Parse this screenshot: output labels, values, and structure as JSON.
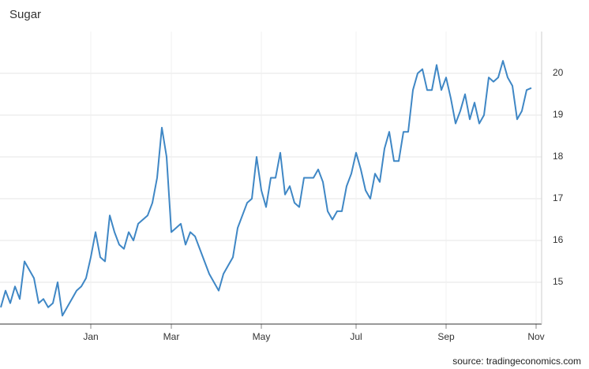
{
  "chart_data": {
    "type": "line",
    "title": "Sugar",
    "source": "source: tradingeconomics.com",
    "categories": [
      null,
      null,
      null,
      null,
      null,
      null,
      null,
      null,
      null,
      null,
      null,
      null,
      null,
      null,
      null,
      null,
      null,
      null,
      null,
      "Jan",
      null,
      null,
      null,
      null,
      null,
      null,
      null,
      null,
      null,
      null,
      null,
      null,
      null,
      null,
      null,
      null,
      "Mar",
      null,
      null,
      null,
      null,
      null,
      null,
      null,
      null,
      null,
      null,
      null,
      null,
      null,
      null,
      null,
      null,
      null,
      null,
      "May",
      null,
      null,
      null,
      null,
      null,
      null,
      null,
      null,
      null,
      null,
      null,
      null,
      null,
      null,
      null,
      null,
      null,
      null,
      null,
      "Jul",
      null,
      null,
      null,
      null,
      null,
      null,
      null,
      null,
      null,
      null,
      null,
      null,
      null,
      null,
      null,
      null,
      null,
      null,
      "Sep",
      null,
      null,
      null,
      null,
      null,
      null,
      null,
      null,
      null,
      null,
      null,
      null,
      null,
      null,
      null,
      null,
      null,
      null,
      "Nov"
    ],
    "series": [
      {
        "name": "Sugar",
        "color": "#3f87c5",
        "values": [
          14.4,
          14.8,
          14.5,
          14.9,
          14.6,
          15.5,
          15.3,
          15.1,
          14.5,
          14.6,
          14.4,
          14.5,
          15.0,
          14.2,
          14.4,
          14.6,
          14.8,
          14.9,
          15.1,
          15.6,
          16.2,
          15.6,
          15.5,
          16.6,
          16.2,
          15.9,
          15.8,
          16.2,
          16.0,
          16.4,
          16.5,
          16.6,
          16.9,
          17.5,
          18.7,
          18.0,
          16.2,
          16.3,
          16.4,
          15.9,
          16.2,
          16.1,
          15.8,
          15.5,
          15.2,
          15.0,
          14.8,
          15.2,
          15.4,
          15.6,
          16.3,
          16.6,
          16.9,
          17.0,
          18.0,
          17.2,
          16.8,
          17.5,
          17.5,
          18.1,
          17.1,
          17.3,
          16.9,
          16.8,
          17.5,
          17.5,
          17.5,
          17.7,
          17.4,
          16.7,
          16.5,
          16.7,
          16.7,
          17.3,
          17.6,
          18.1,
          17.7,
          17.2,
          17.0,
          17.6,
          17.4,
          18.2,
          18.6,
          17.9,
          17.9,
          18.6,
          18.6,
          19.6,
          20.0,
          20.1,
          19.6,
          19.6,
          20.2,
          19.6,
          19.9,
          19.4,
          18.8,
          19.1,
          19.5,
          18.9,
          19.3,
          18.8,
          19.0,
          19.9,
          19.8,
          19.9,
          20.3,
          19.9,
          19.7,
          18.9,
          19.1,
          19.6,
          19.65,
          null
        ]
      }
    ],
    "ylim": [
      14,
      21
    ],
    "yticks": [
      15,
      16,
      17,
      18,
      19,
      20
    ],
    "grid": true
  }
}
